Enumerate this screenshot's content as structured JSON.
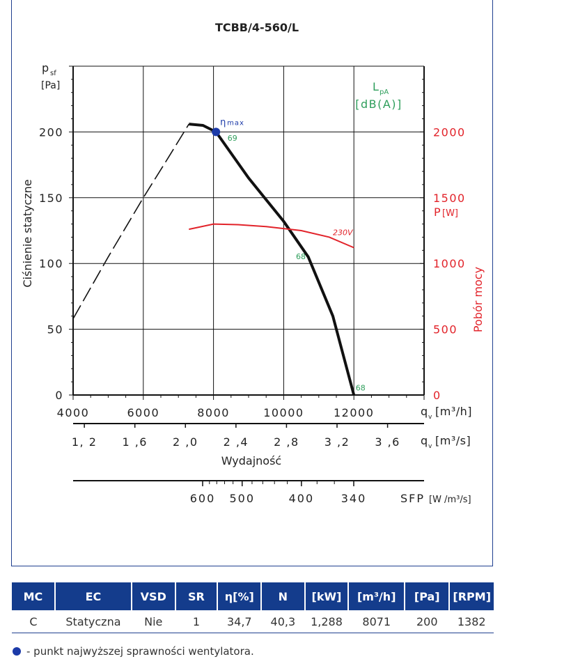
{
  "chart_data": {
    "type": "line",
    "title": "TCBB/4-560/L",
    "ylabel_sym": "p",
    "ylabel_sub": "sf",
    "ylabel_unit": "[Pa]",
    "ylabel_text": "Ciśnienie statyczne",
    "y_ticks": [
      "200",
      "150",
      "100",
      "50",
      "0"
    ],
    "ylim": [
      0,
      250
    ],
    "x_ticks_m3h": [
      "4000",
      "6000",
      "8000",
      "10000",
      "12000"
    ],
    "xlim": [
      4000,
      14000
    ],
    "xlabel_unit_m3h": "q",
    "xlabel_unit_m3h_sub": "v",
    "xlabel_unit_m3h_rest": "[m³/h]",
    "x_ticks_m3s": [
      "1, 2",
      "1 ,6",
      "2 ,0",
      "2 ,4",
      "2 ,8",
      "3 ,2",
      "3 ,6"
    ],
    "x_ticks_m3s_values": [
      1.2,
      1.6,
      2.0,
      2.4,
      2.8,
      3.2,
      3.6
    ],
    "xlabel_unit_m3s": "q",
    "xlabel_unit_m3s_sub": "v",
    "xlabel_unit_m3s_rest": "[m³/s]",
    "xlabel_text": "Wydajność",
    "sfp_ticks": [
      "600",
      "500",
      "400",
      "340"
    ],
    "sfp_values": [
      600,
      500,
      400,
      340
    ],
    "sfp_label": "SFP",
    "sfp_unit": "[W /m³/s]",
    "power_label": "P",
    "power_unit": "[W]",
    "power_ticks": [
      "2000",
      "1500",
      "1000",
      "500",
      "0"
    ],
    "power_axis_title": "Pobór mocy",
    "lpa_label": "L",
    "lpa_sub": "pA",
    "lpa_unit": "[dB(A)]",
    "eta_label": "η",
    "eta_sub": "max",
    "series": [
      {
        "name": "",
        "style": "dashed",
        "x": [
          4000,
          5000,
          6000,
          6700,
          7300
        ],
        "y": [
          58,
          105,
          150,
          180,
          206
        ]
      },
      {
        "name": "",
        "style": "solid",
        "x": [
          7300,
          7700,
          8071,
          9000,
          10000,
          10700,
          11400,
          12000
        ],
        "y": [
          206,
          205,
          200,
          165,
          132,
          105,
          60,
          0
        ]
      },
      {
        "name": "230V",
        "style": "power",
        "x": [
          7300,
          8000,
          8700,
          9500,
          10500,
          11300,
          12000
        ],
        "y": [
          1260,
          1300,
          1295,
          1280,
          1250,
          1200,
          1120
        ]
      }
    ],
    "eta_point": {
      "x": 8071,
      "y": 200
    },
    "lpa_points": [
      {
        "label": "69",
        "x": 8400,
        "y": 196
      },
      {
        "label": "68",
        "x": 10350,
        "y": 106
      },
      {
        "label": "68",
        "x": 12050,
        "y": 6
      }
    ],
    "power_series_label": "230V"
  },
  "table": {
    "headers": [
      "MC",
      "EC",
      "VSD",
      "SR",
      "η[%]",
      "N",
      "[kW]",
      "[m³/h]",
      "[Pa]",
      "[RPM]"
    ],
    "row": [
      "C",
      "Statyczna",
      "Nie",
      "1",
      "34,7",
      "40,3",
      "1,288",
      "8071",
      "200",
      "1382"
    ]
  },
  "legend_text": "- punkt najwyższej sprawności wentylatora.",
  "colors": {
    "curve": "#111111",
    "power": "#e2232a",
    "lpa": "#2e9e5b",
    "eta_dot": "#1c3aa8",
    "header_bg": "#143c8c"
  }
}
